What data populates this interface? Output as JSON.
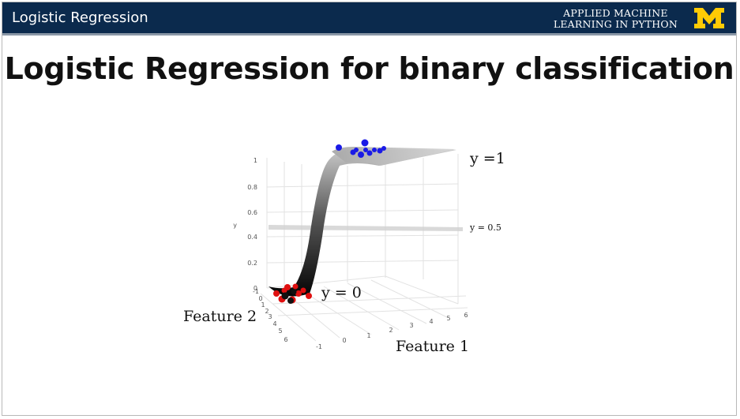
{
  "header": {
    "title": "Logistic Regression",
    "course_line1": "APPLIED MACHINE",
    "course_line2": "LEARNING IN PYTHON",
    "logo_letter": "M",
    "colors": {
      "bar": "#0b2a4d",
      "logo": "#ffcb05"
    }
  },
  "slide": {
    "title": "Logistic Regression for binary classification"
  },
  "figure": {
    "annotations": {
      "y1": "y =1",
      "y05": "y = 0.5",
      "y0": "y = 0",
      "feature1": "Feature 1",
      "feature2": "Feature 2"
    },
    "y_axis": {
      "label": "y",
      "ticks": [
        "0",
        "0.2",
        "0.4",
        "0.6",
        "0.8",
        "1"
      ]
    },
    "feature1_ticks": [
      "-1",
      "0",
      "1",
      "2",
      "3",
      "4",
      "5",
      "6"
    ],
    "feature2_ticks": [
      "-1",
      "0",
      "1",
      "2",
      "3",
      "4",
      "5",
      "6"
    ],
    "colors": {
      "class_1": "#1a1ae6",
      "class_0": "#e01010",
      "surface": "#9a9a9a"
    }
  }
}
